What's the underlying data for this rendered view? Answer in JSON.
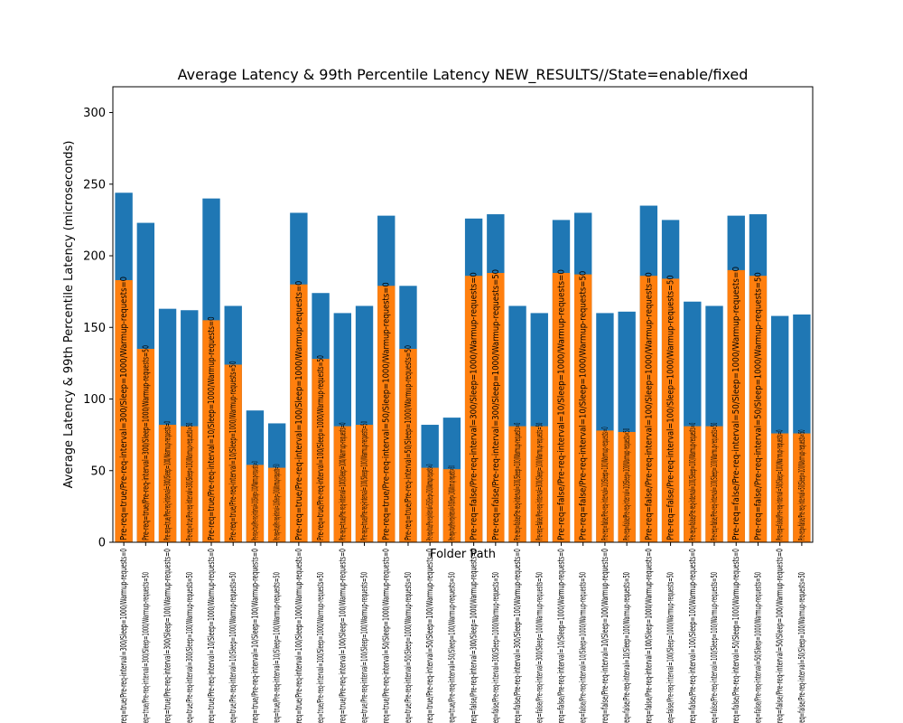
{
  "chart_data": {
    "type": "bar",
    "title": "Average Latency & 99th Percentile Latency NEW_RESULTS//State=enable/fixed",
    "xlabel": "Folder Path",
    "ylabel": "Average Latency & 99th Percentile Latency (microseconds)",
    "ylim": [
      0,
      318
    ],
    "yticks": [
      0,
      50,
      100,
      150,
      200,
      250,
      300
    ],
    "grid": false,
    "colors": {
      "p99": "#1f77b4",
      "avg": "#ff7f0e"
    },
    "categories": [
      "Pre-req=true/Pre-req-interval=300/Sleep=1000/Warmup-requests=0",
      "Pre-req=true/Pre-req-interval=300/Sleep=1000/Warmup-requests=50",
      "Pre-req=true/Pre-req-interval=300/Sleep=100/Warmup-requests=0",
      "Pre-req=true/Pre-req-interval=300/Sleep=100/Warmup-requests=50",
      "Pre-req=true/Pre-req-interval=10/Sleep=1000/Warmup-requests=0",
      "Pre-req=true/Pre-req-interval=10/Sleep=1000/Warmup-requests=50",
      "Pre-req=true/Pre-req-interval=10/Sleep=100/Warmup-requests=0",
      "Pre-req=true/Pre-req-interval=10/Sleep=100/Warmup-requests=50",
      "Pre-req=true/Pre-req-interval=100/Sleep=1000/Warmup-requests=0",
      "Pre-req=true/Pre-req-interval=100/Sleep=1000/Warmup-requests=50",
      "Pre-req=true/Pre-req-interval=100/Sleep=100/Warmup-requests=0",
      "Pre-req=true/Pre-req-interval=100/Sleep=100/Warmup-requests=50",
      "Pre-req=true/Pre-req-interval=50/Sleep=1000/Warmup-requests=0",
      "Pre-req=true/Pre-req-interval=50/Sleep=1000/Warmup-requests=50",
      "Pre-req=true/Pre-req-interval=50/Sleep=100/Warmup-requests=0",
      "Pre-req=true/Pre-req-interval=50/Sleep=100/Warmup-requests=50",
      "Pre-req=false/Pre-req-interval=300/Sleep=1000/Warmup-requests=0",
      "Pre-req=false/Pre-req-interval=300/Sleep=1000/Warmup-requests=50",
      "Pre-req=false/Pre-req-interval=300/Sleep=100/Warmup-requests=0",
      "Pre-req=false/Pre-req-interval=300/Sleep=100/Warmup-requests=50",
      "Pre-req=false/Pre-req-interval=10/Sleep=1000/Warmup-requests=0",
      "Pre-req=false/Pre-req-interval=10/Sleep=1000/Warmup-requests=50",
      "Pre-req=false/Pre-req-interval=10/Sleep=100/Warmup-requests=0",
      "Pre-req=false/Pre-req-interval=10/Sleep=100/Warmup-requests=50",
      "Pre-req=false/Pre-req-interval=100/Sleep=1000/Warmup-requests=0",
      "Pre-req=false/Pre-req-interval=100/Sleep=1000/Warmup-requests=50",
      "Pre-req=false/Pre-req-interval=100/Sleep=100/Warmup-requests=0",
      "Pre-req=false/Pre-req-interval=100/Sleep=100/Warmup-requests=50",
      "Pre-req=false/Pre-req-interval=50/Sleep=1000/Warmup-requests=0",
      "Pre-req=false/Pre-req-interval=50/Sleep=1000/Warmup-requests=50",
      "Pre-req=false/Pre-req-interval=50/Sleep=100/Warmup-requests=0",
      "Pre-req=false/Pre-req-interval=50/Sleep=100/Warmup-requests=50"
    ],
    "series": [
      {
        "key": "p99",
        "values": [
          244,
          223,
          163,
          162,
          240,
          165,
          92,
          83,
          230,
          174,
          160,
          165,
          228,
          179,
          82,
          87,
          226,
          229,
          165,
          160,
          225,
          230,
          160,
          161,
          235,
          225,
          168,
          165,
          228,
          229,
          158,
          159
        ]
      },
      {
        "key": "avg",
        "values": [
          183,
          135,
          82,
          81,
          155,
          124,
          54,
          52,
          180,
          128,
          81,
          82,
          179,
          135,
          52,
          51,
          186,
          188,
          81,
          81,
          188,
          187,
          78,
          77,
          186,
          184,
          81,
          81,
          190,
          186,
          76,
          76
        ]
      }
    ]
  }
}
